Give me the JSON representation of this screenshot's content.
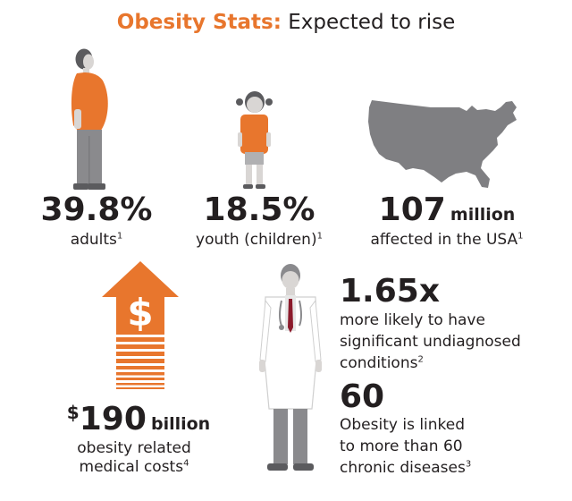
{
  "header": {
    "title_accent": "Obesity Stats:",
    "title_rest": "Expected to rise"
  },
  "colors": {
    "accent": "#e8762d",
    "gray": "#8a8a8d",
    "dark_gray": "#5b5b5e",
    "map": "#7f7f82",
    "text": "#231f20"
  },
  "stats": {
    "adults": {
      "value": "39.8%",
      "label": "adults",
      "note": "1",
      "icon": "adult-figure-icon"
    },
    "youth": {
      "value": "18.5%",
      "label": "youth (children)",
      "note": "1",
      "icon": "child-figure-icon"
    },
    "usa": {
      "value": "107",
      "unit": "million",
      "label": "affected in the USA",
      "note": "1",
      "icon": "usa-map-icon"
    },
    "costs": {
      "currency": "$",
      "value": "190",
      "unit": "billion",
      "label_line1": "obesity related",
      "label_line2": "medical costs",
      "note": "4",
      "icon": "dollar-arrow-icon"
    },
    "undiagnosed": {
      "value": "1.65x",
      "line1": "more likely to have",
      "line2": "significant undiagnosed",
      "line3": "conditions",
      "note": "2",
      "icon": "doctor-figure-icon"
    },
    "diseases": {
      "value": "60",
      "line1": "Obesity is linked",
      "line2": "to more than 60",
      "line3": "chronic diseases",
      "note": "3"
    }
  }
}
